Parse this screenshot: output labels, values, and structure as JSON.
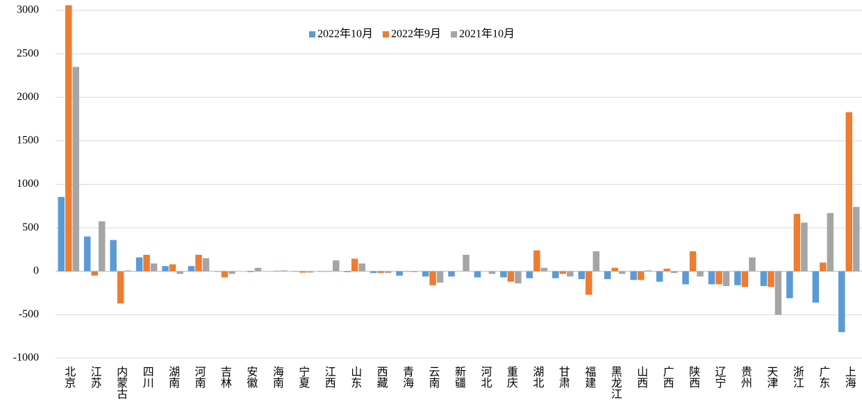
{
  "chart_data": {
    "type": "bar",
    "categories": [
      "北京",
      "江苏",
      "内蒙古",
      "四川",
      "湖南",
      "河南",
      "吉林",
      "安徽",
      "海南",
      "宁夏",
      "江西",
      "山东",
      "西藏",
      "青海",
      "云南",
      "新疆",
      "河北",
      "重庆",
      "湖北",
      "甘肃",
      "福建",
      "黑龙江",
      "山西",
      "广西",
      "陕西",
      "辽宁",
      "贵州",
      "天津",
      "浙江",
      "广东",
      "上海"
    ],
    "series": [
      {
        "name": "2022年10月",
        "color": "#5b9bd5",
        "values": [
          855,
          400,
          360,
          160,
          60,
          60,
          -5,
          0,
          0,
          -5,
          -5,
          -10,
          -20,
          -50,
          -60,
          -60,
          -70,
          -70,
          -80,
          -80,
          -90,
          -90,
          -100,
          -120,
          -150,
          -150,
          -160,
          -170,
          -310,
          -360,
          -700
        ]
      },
      {
        "name": "2022年9月",
        "color": "#ed7d31",
        "values": [
          3060,
          -50,
          -370,
          190,
          80,
          190,
          -70,
          -10,
          5,
          -15,
          -5,
          145,
          -20,
          -5,
          -160,
          0,
          0,
          -120,
          240,
          -30,
          -270,
          40,
          -100,
          30,
          230,
          -150,
          -180,
          -180,
          660,
          100,
          1830
        ]
      },
      {
        "name": "2021年10月",
        "color": "#a5a5a5",
        "values": [
          2350,
          575,
          10,
          90,
          -30,
          150,
          -30,
          40,
          10,
          -15,
          125,
          90,
          -20,
          -10,
          -130,
          190,
          -30,
          -140,
          40,
          -60,
          230,
          -30,
          10,
          -20,
          -60,
          -170,
          160,
          -500,
          560,
          670,
          740
        ]
      }
    ],
    "ylim": [
      -1000,
      3000
    ],
    "yticks": [
      -1000,
      -500,
      0,
      500,
      1000,
      1500,
      2000,
      2500,
      3000
    ],
    "grid": true
  }
}
